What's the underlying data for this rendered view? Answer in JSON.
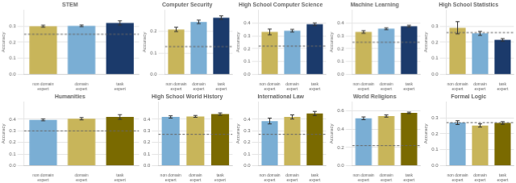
{
  "chart_data": [
    {
      "type": "bar",
      "title": "STEM",
      "categories": [
        "non domain\nexpert",
        "domain\nexpert",
        "task\nexpert"
      ],
      "values": [
        0.3,
        0.302,
        0.32
      ],
      "errors": [
        0.006,
        0.005,
        0.013
      ],
      "colors": [
        "#c8b55a",
        "#7aaed4",
        "#1b3a6b"
      ],
      "reference_line": 0.25,
      "ylim": [
        0.0,
        0.4
      ],
      "yticks": [
        {
          "value": 0.0,
          "label": "0.0"
        },
        0.1,
        0.2,
        0.3
      ],
      "y_label": "Accuracy",
      "grid": true
    },
    {
      "type": "bar",
      "title": "Computer Security",
      "categories": [
        "non domain\nexpert",
        "domain\nexpert",
        "task\nexpert"
      ],
      "values": [
        0.21,
        0.245,
        0.265
      ],
      "errors": [
        0.01,
        0.008,
        0.008
      ],
      "colors": [
        "#c8b55a",
        "#7aaed4",
        "#1b3a6b"
      ],
      "reference_line": 0.13,
      "ylim": [
        0.0,
        0.3
      ],
      "yticks": [
        {
          "value": 0.0,
          "label": "0.0"
        },
        0.1,
        0.2
      ],
      "y_label": "Accuracy",
      "grid": true
    },
    {
      "type": "bar",
      "title": "High School Computer Science",
      "categories": [
        "non domain\nexpert",
        "domain\nexpert",
        "task\nexpert"
      ],
      "values": [
        0.33,
        0.34,
        0.39
      ],
      "errors": [
        0.022,
        0.01,
        0.01
      ],
      "colors": [
        "#c8b55a",
        "#7aaed4",
        "#1b3a6b"
      ],
      "reference_line": 0.22,
      "ylim": [
        0.0,
        0.5
      ],
      "yticks": [
        {
          "value": 0.0,
          "label": "0.0"
        },
        0.1,
        0.2,
        0.3,
        0.4
      ],
      "y_label": "Accuracy",
      "grid": true
    },
    {
      "type": "bar",
      "title": "Machine Learning",
      "categories": [
        "non domain\nexpert",
        "domain\nexpert",
        "task\nexpert"
      ],
      "values": [
        0.33,
        0.355,
        0.375
      ],
      "errors": [
        0.01,
        0.007,
        0.007
      ],
      "colors": [
        "#c8b55a",
        "#7aaed4",
        "#1b3a6b"
      ],
      "reference_line": 0.25,
      "ylim": [
        0.0,
        0.5
      ],
      "yticks": [
        {
          "value": 0.0,
          "label": "0.0"
        },
        0.1,
        0.2,
        0.3,
        0.4
      ],
      "y_label": "Accuracy",
      "grid": true
    },
    {
      "type": "bar",
      "title": "High School Statistics",
      "categories": [
        "non domain\nexpert",
        "domain\nexpert",
        "task\nexpert"
      ],
      "values": [
        0.29,
        0.255,
        0.215
      ],
      "errors": [
        0.038,
        0.012,
        0.008
      ],
      "colors": [
        "#c8b55a",
        "#7aaed4",
        "#1b3a6b"
      ],
      "reference_line": 0.26,
      "ylim": [
        0.0,
        0.4
      ],
      "yticks": [
        {
          "value": 0.0,
          "label": "0.0"
        },
        0.1,
        0.2,
        0.3
      ],
      "y_label": "Accuracy",
      "grid": true
    },
    {
      "type": "bar",
      "title": "Humanities",
      "categories": [
        "non domain\nexpert",
        "domain\nexpert",
        "task\nexpert"
      ],
      "values": [
        0.395,
        0.405,
        0.42
      ],
      "errors": [
        0.008,
        0.01,
        0.02
      ],
      "colors": [
        "#7aaed4",
        "#c8b55a",
        "#7a6a00"
      ],
      "reference_line": 0.3,
      "ylim": [
        0.0,
        0.55
      ],
      "yticks": [
        {
          "value": 0.0,
          "label": "0.0"
        },
        0.1,
        0.2,
        0.3,
        0.4
      ],
      "y_label": "Accuracy",
      "grid": true
    },
    {
      "type": "bar",
      "title": "High School World History",
      "categories": [
        "non domain\nexpert",
        "domain\nexpert",
        "task\nexpert"
      ],
      "values": [
        0.42,
        0.425,
        0.445
      ],
      "errors": [
        0.01,
        0.008,
        0.01
      ],
      "colors": [
        "#7aaed4",
        "#c8b55a",
        "#7a6a00"
      ],
      "reference_line": 0.27,
      "ylim": [
        0.0,
        0.55
      ],
      "yticks": [
        {
          "value": 0.0,
          "label": "0.0"
        },
        0.1,
        0.2,
        0.3,
        0.4
      ],
      "grid": true
    },
    {
      "type": "bar",
      "title": "International Law",
      "categories": [
        "non domain\nexpert",
        "domain\nexpert",
        "task\nexpert"
      ],
      "values": [
        0.385,
        0.42,
        0.45
      ],
      "errors": [
        0.025,
        0.018,
        0.018
      ],
      "colors": [
        "#7aaed4",
        "#c8b55a",
        "#7a6a00"
      ],
      "reference_line": 0.27,
      "ylim": [
        0.0,
        0.55
      ],
      "yticks": [
        {
          "value": 0.0,
          "label": "0.0"
        },
        0.1,
        0.2,
        0.3,
        0.4
      ],
      "y_label": "Accuracy",
      "grid": true
    },
    {
      "type": "bar",
      "title": "World Religions",
      "categories": [
        "non domain\nexpert",
        "domain\nexpert",
        "task\nexpert"
      ],
      "values": [
        0.52,
        0.545,
        0.58
      ],
      "errors": [
        0.015,
        0.012,
        0.008
      ],
      "colors": [
        "#7aaed4",
        "#c8b55a",
        "#7a6a00"
      ],
      "reference_line": 0.22,
      "ylim": [
        0.0,
        0.7
      ],
      "yticks": [
        {
          "value": 0.0,
          "label": "0.0"
        },
        0.2,
        0.4,
        0.6
      ],
      "y_label": "Accuracy",
      "grid": true
    },
    {
      "type": "bar",
      "title": "Formal Logic",
      "categories": [
        "non domain\nexpert",
        "domain\nexpert",
        "task\nexpert"
      ],
      "values": [
        0.27,
        0.252,
        0.268
      ],
      "errors": [
        0.012,
        0.01,
        0.008
      ],
      "colors": [
        "#7aaed4",
        "#c8b55a",
        "#7a6a00"
      ],
      "reference_line": 0.27,
      "ylim": [
        0.0,
        0.4
      ],
      "yticks": [
        {
          "value": 0.0,
          "label": "0.0"
        },
        0.1,
        0.2,
        0.3
      ],
      "y_label": "Accuracy",
      "grid": true
    }
  ]
}
